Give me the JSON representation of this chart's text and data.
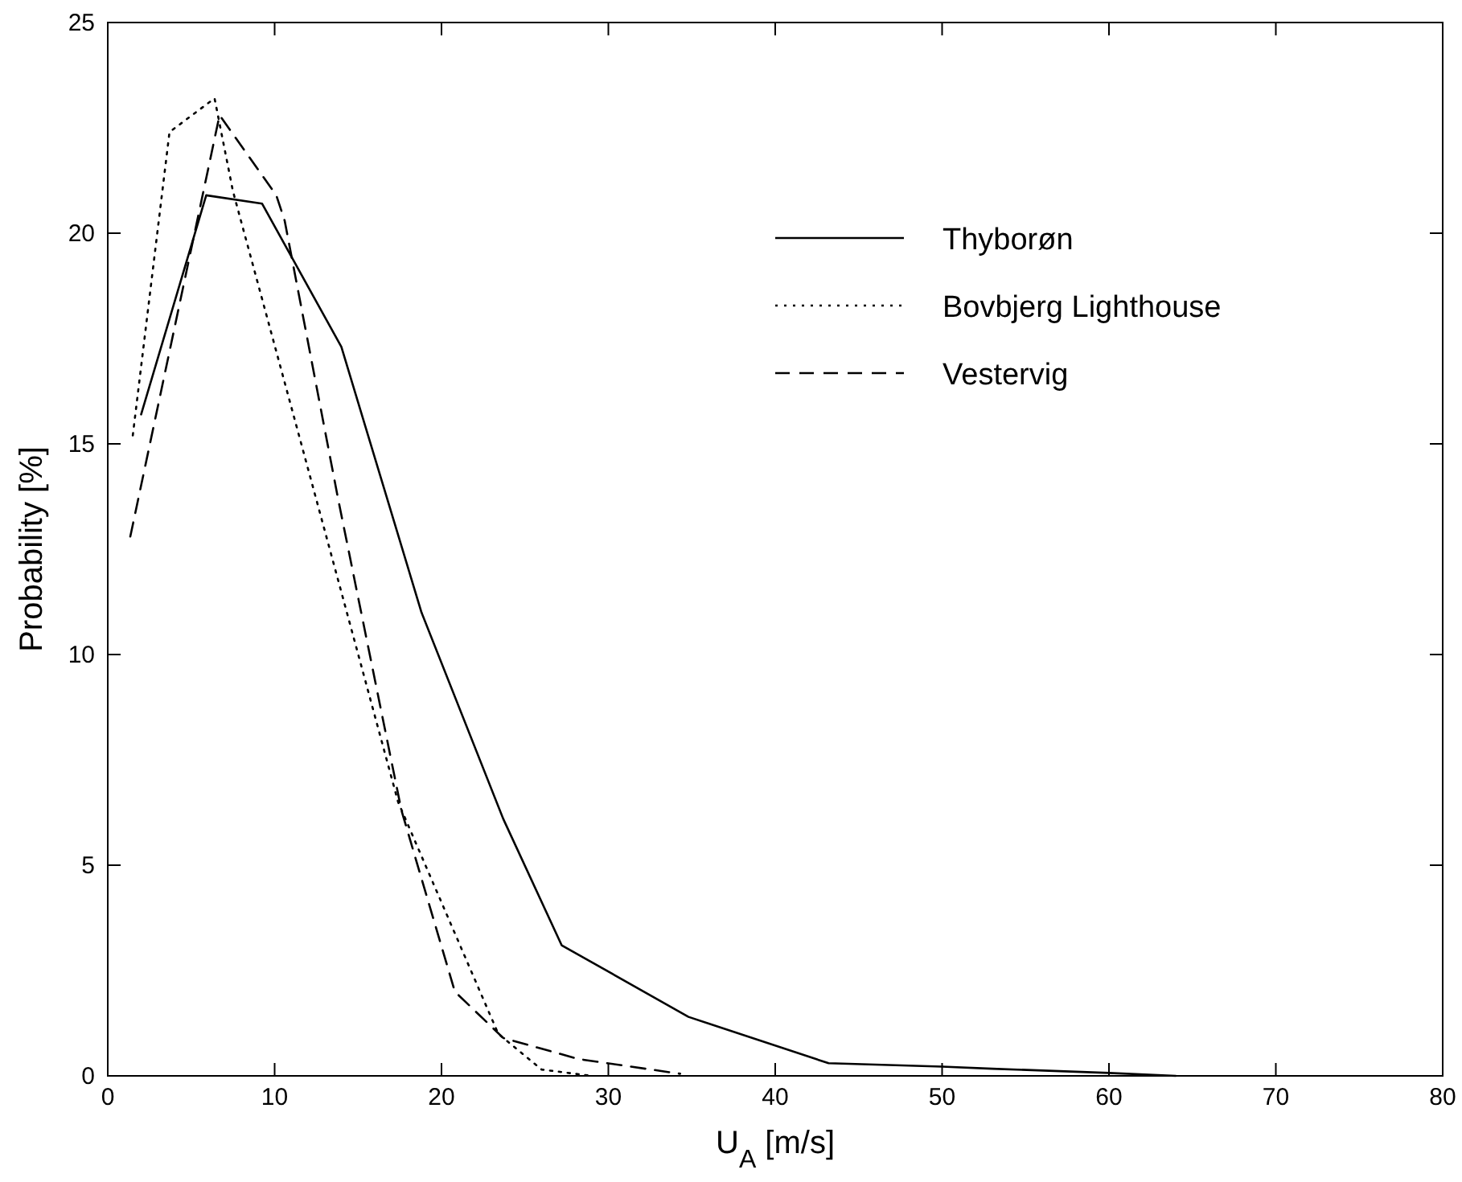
{
  "chart_data": {
    "type": "line",
    "xlabel": "U$_{A}$ [m/s]",
    "ylabel": "Probability [%]",
    "xlim": [
      0,
      80
    ],
    "xticks": [
      0,
      10,
      20,
      30,
      40,
      50,
      60,
      70,
      80
    ],
    "ylim": [
      0,
      25
    ],
    "yticks": [
      0,
      5,
      10,
      15,
      20,
      25
    ],
    "grid": false,
    "legend": "top right",
    "series": [
      {
        "name": "Thyborøn",
        "color": "#000000",
        "line_style": "solid",
        "x": [
          2.0,
          5.9,
          9.25,
          14.0,
          18.8,
          23.7,
          27.2,
          34.8,
          43.2,
          50,
          53,
          60,
          64
        ],
        "values": [
          15.7,
          20.9,
          20.7,
          17.3,
          11.0,
          6.1,
          3.1,
          1.4,
          0.3,
          0.22,
          0.17,
          0.07,
          0
        ]
      },
      {
        "name": "Bovbjerg Lighthouse",
        "color": "#000000",
        "line_style": "dotted",
        "x": [
          1.5,
          3.7,
          6.4,
          7.5,
          17.4,
          23.4,
          26,
          29
        ],
        "values": [
          15.2,
          22.4,
          23.2,
          21.0,
          6.5,
          1.0,
          0.15,
          0
        ]
      },
      {
        "name": "Vestervig",
        "color": "#000000",
        "line_style": "dashed",
        "x": [
          1.35,
          6.7,
          10.1,
          10.6,
          13.8,
          17.6,
          20.8,
          23.7,
          28.2,
          34.3
        ],
        "values": [
          12.8,
          22.8,
          20.9,
          20.3,
          13.7,
          6.3,
          2.0,
          0.9,
          0.4,
          0.05
        ]
      }
    ]
  }
}
